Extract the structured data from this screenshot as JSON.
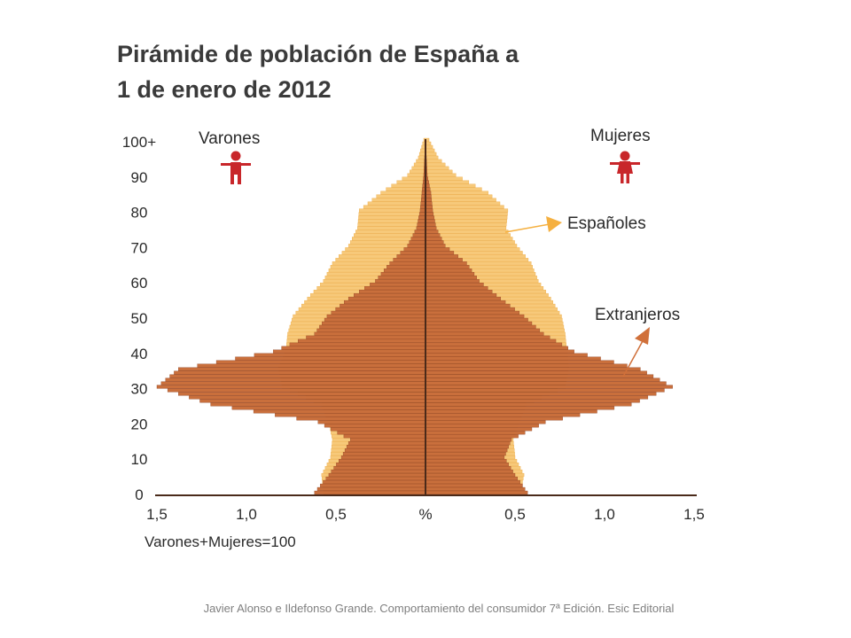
{
  "colors": {
    "spanish": "#f7c97a",
    "spanish_edge": "#eaa740",
    "foreign": "#c96f3c",
    "foreign_edge": "#8e4324",
    "axis": "#4a2a1a",
    "icon": "#c8262a",
    "arrow_spanish": "#f5b040",
    "arrow_foreign": "#d0703a"
  },
  "chart_data": {
    "type": "population-pyramid",
    "title": [
      "Pirámide de población de España a",
      "1 de enero de 2012"
    ],
    "left_label": "Varones",
    "right_label": "Mujeres",
    "left_icon": "male-figure-icon",
    "right_icon": "female-figure-icon",
    "x_ticks_left": [
      "1,5",
      "1,0",
      "0,5"
    ],
    "x_center_label": "%",
    "x_ticks_right": [
      "0,5",
      "1,0",
      "1,5"
    ],
    "x_tick_values": [
      -1.5,
      -1.0,
      -0.5,
      0,
      0.5,
      1.0,
      1.5
    ],
    "x_note": "Varones+Mujeres=100",
    "xlim": [
      -1.5,
      1.5
    ],
    "y_ticks": [
      "0",
      "10",
      "20",
      "30",
      "40",
      "50",
      "60",
      "70",
      "80",
      "90",
      "100+"
    ],
    "y_tick_values": [
      0,
      10,
      20,
      30,
      40,
      50,
      60,
      70,
      80,
      90,
      100
    ],
    "ylim": [
      0,
      100
    ],
    "series": [
      {
        "name": "Españoles",
        "side_values_by_age": {
          "ages": [
            0,
            5,
            10,
            15,
            20,
            25,
            30,
            35,
            40,
            45,
            50,
            55,
            60,
            65,
            70,
            75,
            80,
            85,
            90,
            95,
            100
          ],
          "male": [
            0.57,
            0.58,
            0.53,
            0.52,
            0.54,
            0.58,
            0.8,
            0.82,
            0.78,
            0.77,
            0.74,
            0.66,
            0.57,
            0.52,
            0.43,
            0.38,
            0.37,
            0.25,
            0.1,
            0.04,
            0.01
          ],
          "female": [
            0.53,
            0.55,
            0.5,
            0.49,
            0.52,
            0.56,
            0.78,
            0.8,
            0.79,
            0.78,
            0.76,
            0.7,
            0.63,
            0.59,
            0.51,
            0.45,
            0.46,
            0.35,
            0.17,
            0.07,
            0.02
          ]
        }
      },
      {
        "name": "Extranjeros",
        "side_values_by_age": {
          "ages": [
            0,
            5,
            10,
            15,
            20,
            25,
            30,
            35,
            40,
            45,
            50,
            55,
            60,
            65,
            70,
            75,
            80,
            85,
            90,
            95,
            100
          ],
          "male": [
            0.62,
            0.54,
            0.47,
            0.42,
            0.6,
            1.2,
            1.5,
            1.38,
            0.85,
            0.62,
            0.55,
            0.43,
            0.28,
            0.2,
            0.1,
            0.05,
            0.03,
            0.02,
            0.01,
            0.005,
            0.0
          ],
          "female": [
            0.57,
            0.5,
            0.44,
            0.48,
            0.67,
            1.15,
            1.38,
            1.2,
            0.83,
            0.66,
            0.55,
            0.42,
            0.3,
            0.23,
            0.11,
            0.06,
            0.04,
            0.03,
            0.01,
            0.005,
            0.0
          ]
        }
      }
    ],
    "legend": [
      {
        "label": "Españoles",
        "series": "Españoles"
      },
      {
        "label": "Extranjeros",
        "series": "Extranjeros"
      }
    ]
  },
  "footer": {
    "credit": "Javier Alonso e Ildefonso Grande. Comportamiento del consumidor 7ª Edición. Esic Editorial"
  }
}
